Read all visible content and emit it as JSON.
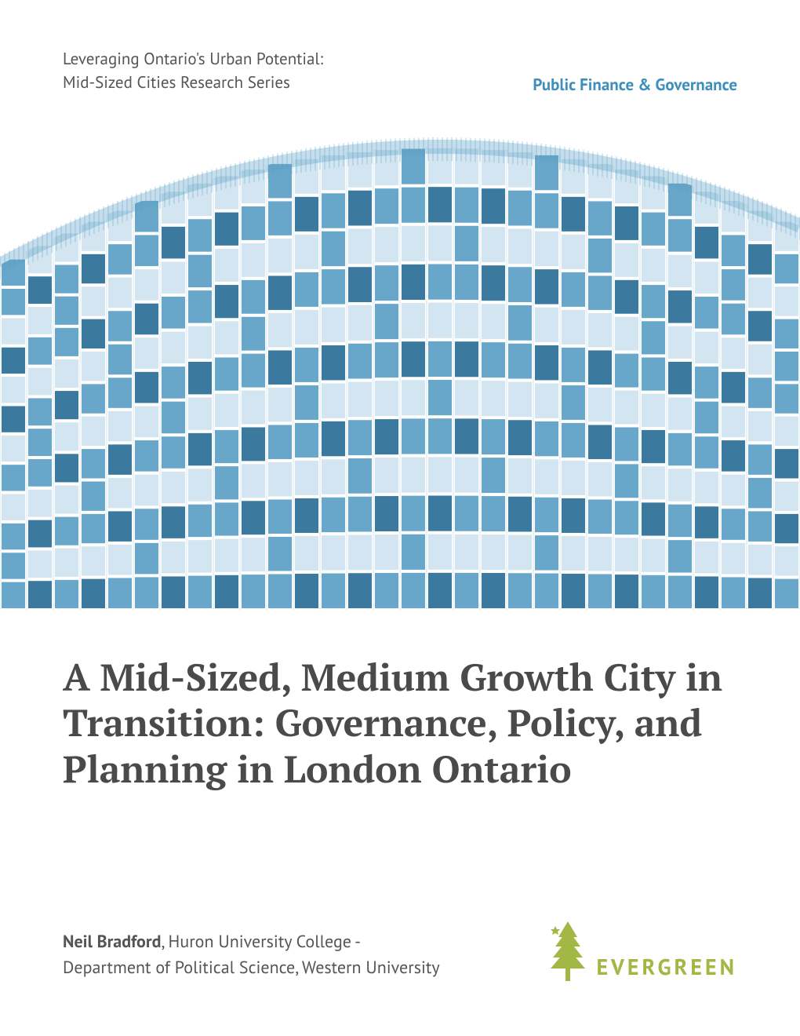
{
  "colors": {
    "text_dark": "#4a4a4a",
    "text_body": "#555555",
    "accent_blue": "#3f8fbd",
    "building_blue": "#5ca0c6",
    "building_dark": "#2a6f96",
    "logo_green": "#a3b744",
    "white": "#ffffff"
  },
  "typography": {
    "series_fontsize": 21,
    "category_fontsize": 21,
    "title_fontsize": 48,
    "author_fontsize": 22,
    "logo_fontsize": 28,
    "logo_letterspacing": 4
  },
  "header": {
    "series_line1": "Leveraging Ontario's Urban Potential:",
    "series_line2": "Mid-Sized Cities Research Series",
    "category": "Public Finance & Governance"
  },
  "hero_image": {
    "type": "photo-illustration",
    "description": "upward-looking-curved-glass-building-facade",
    "tint_color": "#5ca0c6",
    "background": "#ffffff",
    "rows": 12,
    "cols": 30
  },
  "title": "A Mid-Sized, Medium Growth City in Transition: Governance, Policy, and Planning in London Ontario",
  "author": {
    "name": "Neil Bradford",
    "affiliation_line1": ", Huron University College -",
    "affiliation_line2": "Department of Political Science, Western University"
  },
  "logo": {
    "name": "evergreen-logo",
    "text": "EVERGREEN",
    "icon": "pine-tree-icon",
    "color": "#a3b744"
  }
}
